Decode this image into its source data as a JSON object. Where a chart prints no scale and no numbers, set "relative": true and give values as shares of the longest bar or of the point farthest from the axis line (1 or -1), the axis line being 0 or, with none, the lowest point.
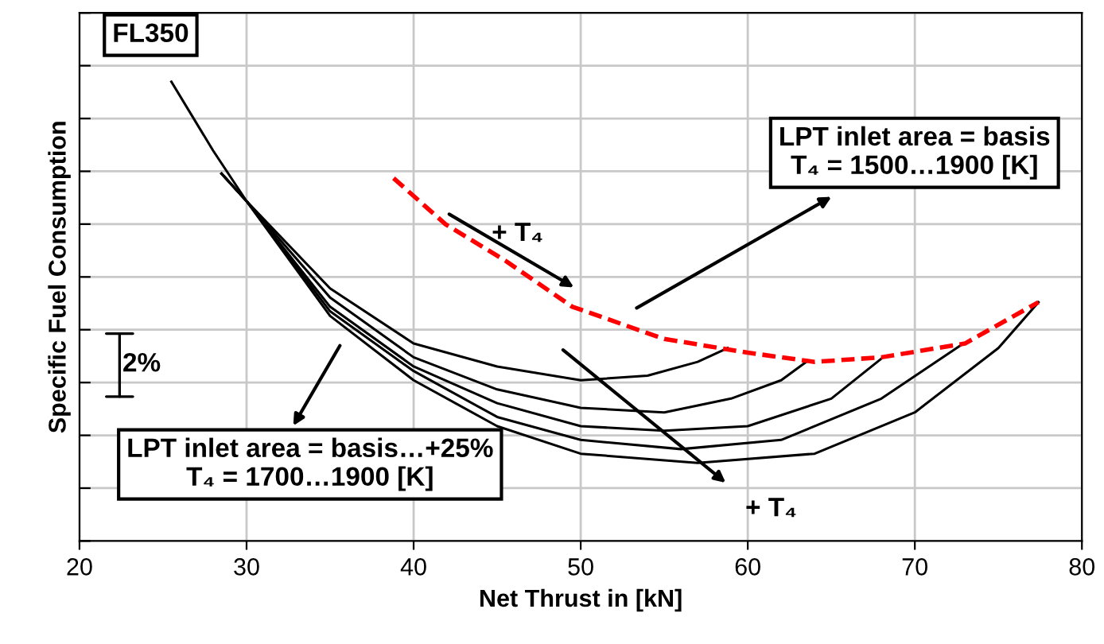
{
  "chart_data": {
    "type": "line",
    "relative": true,
    "xlabel": "Net Thrust in [kN]",
    "ylabel": "Specific Fuel Consumption",
    "xlim": [
      20,
      80
    ],
    "xticks": [
      20,
      30,
      40,
      50,
      60,
      70,
      80
    ],
    "grid": true,
    "legend": false,
    "tick_labels": "x",
    "marker": "none",
    "series": [
      {
        "color": "#000000",
        "line_style": "solid",
        "x": [
          28.5,
          30,
          35,
          40,
          45,
          50,
          54,
          57,
          58.8
        ],
        "values": [
          0.8,
          0.74,
          0.55,
          0.43,
          0.38,
          0.35,
          0.36,
          0.39,
          0.42
        ]
      },
      {
        "color": "#000000",
        "line_style": "solid",
        "x": [
          28.5,
          30,
          35,
          40,
          45,
          50,
          55,
          59,
          62,
          63.5
        ],
        "values": [
          0.8,
          0.74,
          0.53,
          0.4,
          0.33,
          0.29,
          0.28,
          0.31,
          0.35,
          0.39
        ]
      },
      {
        "color": "#000000",
        "line_style": "solid",
        "x": [
          28.5,
          30,
          35,
          40,
          45,
          50,
          55,
          60,
          65,
          68.1
        ],
        "values": [
          0.8,
          0.74,
          0.51,
          0.38,
          0.3,
          0.25,
          0.24,
          0.25,
          0.31,
          0.4
        ]
      },
      {
        "color": "#000000",
        "line_style": "solid",
        "x": [
          28.5,
          30,
          35,
          40,
          45,
          50,
          56,
          62,
          68,
          72.9
        ],
        "values": [
          0.8,
          0.74,
          0.5,
          0.37,
          0.27,
          0.22,
          0.2,
          0.22,
          0.31,
          0.43
        ]
      },
      {
        "color": "#000000",
        "line_style": "solid",
        "x": [
          25.5,
          28,
          30,
          35,
          40,
          45,
          50,
          57,
          64,
          70,
          75,
          77.4
        ],
        "values": [
          1.0,
          0.85,
          0.74,
          0.49,
          0.35,
          0.25,
          0.19,
          0.17,
          0.19,
          0.28,
          0.42,
          0.52
        ]
      },
      {
        "color": "#ff0000",
        "line_style": "dashed",
        "x": [
          38.8,
          41.9,
          45.5,
          49.5,
          55,
          60,
          64,
          68,
          73,
          77.4
        ],
        "values": [
          0.79,
          0.69,
          0.61,
          0.51,
          0.44,
          0.41,
          0.39,
          0.4,
          0.43,
          0.52
        ]
      }
    ],
    "annotations": [
      "FL350",
      "LPT inlet area = basis\nT₄ = 1500…1900 [K]",
      "LPT inlet area = basis…+25%\nT₄ = 1700…1900 [K]",
      "+ T₄",
      "+ T₄",
      "2%"
    ]
  }
}
